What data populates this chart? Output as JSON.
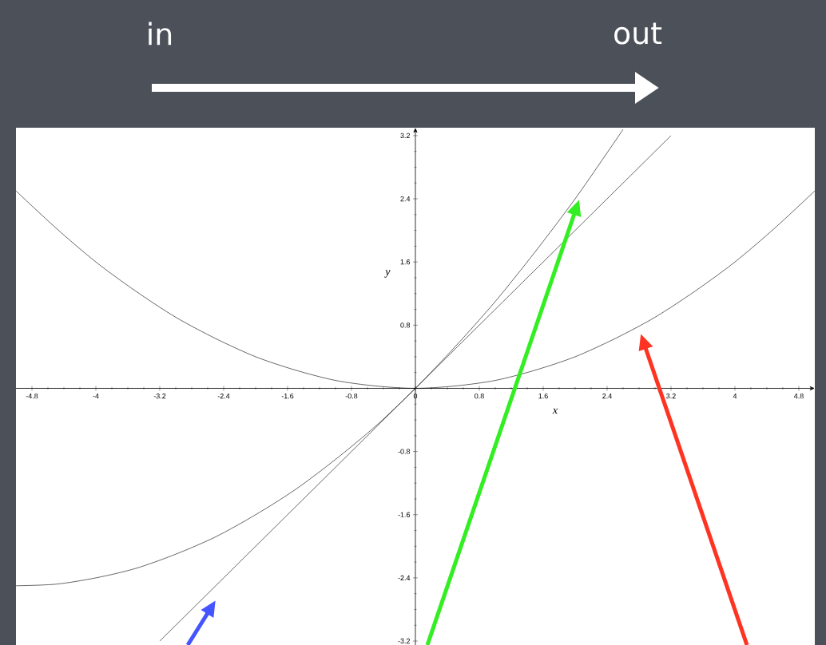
{
  "chart_data": {
    "type": "line",
    "xlabel": "x",
    "ylabel": "y",
    "annotations": [
      "in",
      "out"
    ],
    "xlim": [
      -5,
      5
    ],
    "ylim": [
      -3.25,
      3.3
    ],
    "xticks": [
      -4.8,
      -4,
      -3.2,
      -2.4,
      -1.6,
      -0.8,
      0,
      0.8,
      1.6,
      2.4,
      3.2,
      4,
      4.8
    ],
    "yticks": [
      -3.2,
      -2.4,
      -1.6,
      -0.8,
      {
        "value": 0,
        "label": null
      },
      0.8,
      1.6,
      2.4,
      3.2
    ],
    "marker": "none",
    "line_style": "solid",
    "series": [
      {
        "color": "#000000",
        "x": [
          -3.2,
          -2.4,
          -1.6,
          -0.8,
          0,
          0.8,
          1.6,
          2.4,
          3.2
        ],
        "values": [
          -3.2,
          -2.4,
          -1.6,
          -0.8,
          0,
          0.8,
          1.6,
          2.4,
          3.2
        ]
      },
      {
        "color": "#000000",
        "x": [
          -5,
          -4.5,
          -4,
          -3.5,
          -3,
          -2.5,
          -2,
          -1.5,
          -1,
          -0.5,
          0,
          0.5,
          1,
          1.5,
          2,
          2.5,
          2.6
        ],
        "values": [
          -2.5,
          -2.48,
          -2.4,
          -2.28,
          -2.1,
          -1.88,
          -1.6,
          -1.28,
          -0.9,
          -0.48,
          0,
          0.53,
          1.1,
          1.73,
          2.4,
          3.13,
          3.28
        ]
      },
      {
        "color": "#000000",
        "x": [
          -5,
          -4.5,
          -4,
          -3.5,
          -3,
          -2.5,
          -2,
          -1.5,
          -1,
          -0.5,
          0,
          0.5,
          1,
          1.5,
          2,
          2.5,
          3,
          3.5,
          4,
          4.5,
          5
        ],
        "values": [
          2.5,
          2.03,
          1.6,
          1.23,
          0.9,
          0.63,
          0.4,
          0.23,
          0.1,
          0.03,
          0,
          0.03,
          0.1,
          0.23,
          0.4,
          0.63,
          0.9,
          1.23,
          1.6,
          2.03,
          2.5
        ]
      }
    ]
  }
}
